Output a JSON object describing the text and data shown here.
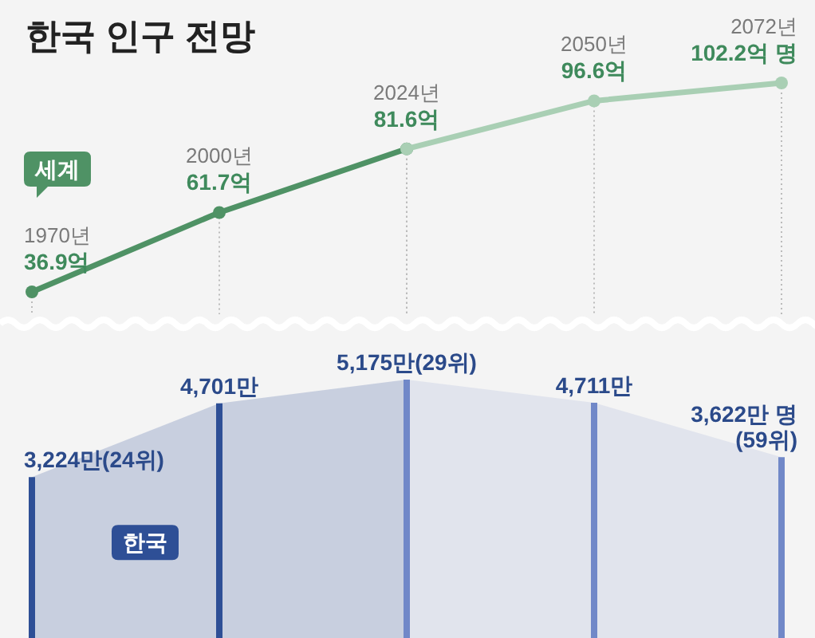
{
  "chart_data": [
    {
      "type": "line",
      "title": "한국 인구 전망",
      "categories": [
        null,
        null,
        null,
        null,
        null
      ],
      "grid": "x",
      "marker": "circle",
      "line_style": "solid",
      "annotations": [
        "1970년",
        "2000년",
        "2024년",
        "2050년",
        "2072년"
      ],
      "series": [
        {
          "name": "세계",
          "color": "#4f9265",
          "values": [
            36.9,
            61.7,
            81.6,
            null,
            null
          ],
          "value_labels": [
            "36.9억",
            "61.7억",
            "81.6억",
            null,
            null
          ]
        },
        {
          "color": "#a9cfb4",
          "values": [
            null,
            null,
            81.6,
            96.6,
            102.2
          ],
          "value_labels": [
            null,
            null,
            null,
            "96.6억",
            "102.2억 명"
          ]
        }
      ]
    },
    {
      "type": "area",
      "categories": [
        null,
        null,
        null,
        null,
        null
      ],
      "grid": "x",
      "series": [
        {
          "name": "한국",
          "color": "#2e4f96",
          "values": [
            3224,
            4701,
            5175,
            null,
            null
          ],
          "value_labels": [
            "3,224만(24위)",
            "4,701만",
            "5,175만(29위)",
            null,
            null
          ]
        },
        {
          "color": "#7188c8",
          "values": [
            null,
            null,
            5175,
            4711,
            3622
          ],
          "value_labels": [
            null,
            null,
            null,
            "4,711만",
            "3,622만 명\n(59위)"
          ]
        }
      ]
    }
  ]
}
